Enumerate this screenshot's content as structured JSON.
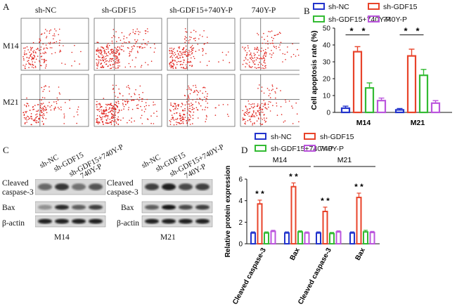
{
  "panel_a": {
    "letter": "A",
    "columns": [
      "sh-NC",
      "sh-GDF15",
      "sh-GDF15+740Y-P",
      "740Y-P"
    ],
    "rows": [
      "M14",
      "M21"
    ]
  },
  "panel_b": {
    "letter": "B",
    "legend": [
      "sh-NC",
      "sh-GDF15",
      "sh-GDF15+740Y-P",
      "740Y-P"
    ],
    "colors": [
      "#2233cc",
      "#e8432a",
      "#33bb33",
      "#bb55dd"
    ]
  },
  "panel_c": {
    "letter": "C",
    "blots": [
      {
        "lanes": [
          "sh-NC",
          "sh-GDF15",
          "sh-GDF15+740Y-P",
          "740Y-P"
        ],
        "labels": [
          "Cleaved caspase-3",
          "Bax",
          "β-actin"
        ],
        "caption": "M14"
      },
      {
        "lanes": [
          "sh-NC",
          "sh-GDF15",
          "sh-GDF15+740Y-P",
          "740Y-P"
        ],
        "labels": [
          "Cleaved caspase-3",
          "Bax",
          "β-actin"
        ],
        "caption": "M21"
      }
    ]
  },
  "panel_d": {
    "letter": "D",
    "legend": [
      "sh-NC",
      "sh-GDF15",
      "sh-GDF15+740Y-P",
      "740Y-P"
    ],
    "groups": [
      "M14",
      "M21"
    ]
  },
  "chart_data": [
    {
      "type": "bar",
      "title": "",
      "ylabel": "Cell apoptosis rate (%)",
      "xlabel": "",
      "categories": [
        "M14",
        "M21"
      ],
      "series": [
        {
          "name": "sh-NC",
          "values": [
            2.5,
            1.5
          ],
          "errors": [
            1.2,
            0.8
          ]
        },
        {
          "name": "sh-GDF15",
          "values": [
            36,
            33.5
          ],
          "errors": [
            3,
            4
          ]
        },
        {
          "name": "sh-GDF15+740Y-P",
          "values": [
            14.5,
            22
          ],
          "errors": [
            3,
            3.5
          ]
        },
        {
          "name": "740Y-P",
          "values": [
            7,
            5.5
          ],
          "errors": [
            1.5,
            1.5
          ]
        }
      ],
      "ylim": [
        0,
        50
      ],
      "yticks": [
        0,
        10,
        20,
        30,
        40,
        50
      ],
      "significance": [
        "*",
        "*",
        "*",
        "*"
      ]
    },
    {
      "type": "bar",
      "title": "",
      "ylabel": "Relative protein expression",
      "xlabel": "",
      "categories": [
        "Cleaved caspase-3",
        "Bax",
        "Cleaved caspase-3",
        "Bax"
      ],
      "groups": [
        "M14",
        "M21"
      ],
      "series": [
        {
          "name": "sh-NC",
          "values": [
            1.0,
            1.0,
            1.0,
            1.0
          ],
          "errors": [
            0.1,
            0.1,
            0.1,
            0.1
          ]
        },
        {
          "name": "sh-GDF15",
          "values": [
            3.7,
            5.3,
            3.0,
            4.3
          ],
          "errors": [
            0.35,
            0.35,
            0.4,
            0.4
          ]
        },
        {
          "name": "sh-GDF15+740Y-P",
          "values": [
            1.0,
            1.1,
            0.95,
            1.1
          ],
          "errors": [
            0.1,
            0.1,
            0.1,
            0.15
          ]
        },
        {
          "name": "740Y-P",
          "values": [
            1.15,
            1.0,
            1.1,
            1.05
          ],
          "errors": [
            0.1,
            0.1,
            0.1,
            0.1
          ]
        }
      ],
      "ylim": [
        0,
        6
      ],
      "yticks": [
        0,
        2,
        4,
        6
      ],
      "significance": [
        "* *",
        "* *",
        "* *",
        "* *"
      ]
    }
  ]
}
